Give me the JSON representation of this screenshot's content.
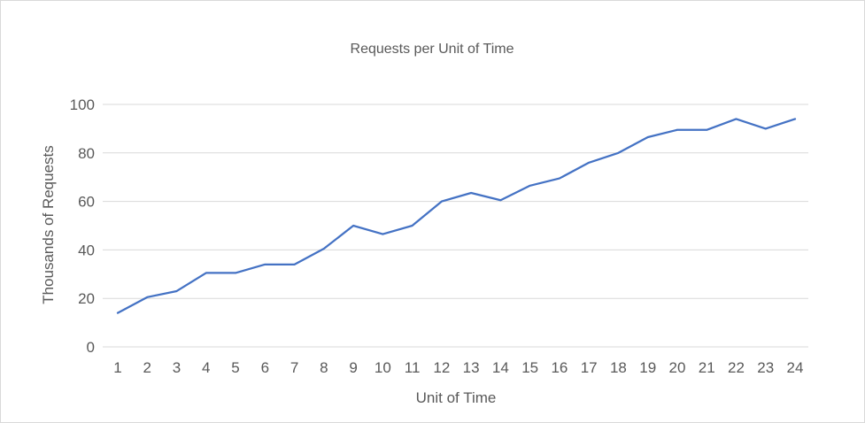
{
  "chart_data": {
    "type": "line",
    "title": "Requests per Unit of Time",
    "xlabel": "Unit of Time",
    "ylabel": "Thousands of Requests",
    "x": [
      1,
      2,
      3,
      4,
      5,
      6,
      7,
      8,
      9,
      10,
      11,
      12,
      13,
      14,
      15,
      16,
      17,
      18,
      19,
      20,
      21,
      22,
      23,
      24
    ],
    "series": [
      {
        "values": [
          14,
          20.5,
          23,
          30.5,
          30.5,
          34,
          34,
          40.5,
          50,
          46.5,
          50,
          60,
          63.5,
          60.5,
          66.5,
          69.5,
          76,
          80,
          86.5,
          89.5,
          89.5,
          94,
          90,
          94
        ],
        "color": "#4472c4"
      }
    ],
    "ylim": [
      0,
      100
    ],
    "yticks": [
      0,
      20,
      40,
      60,
      80,
      100
    ],
    "grid": true,
    "legend": "none"
  }
}
